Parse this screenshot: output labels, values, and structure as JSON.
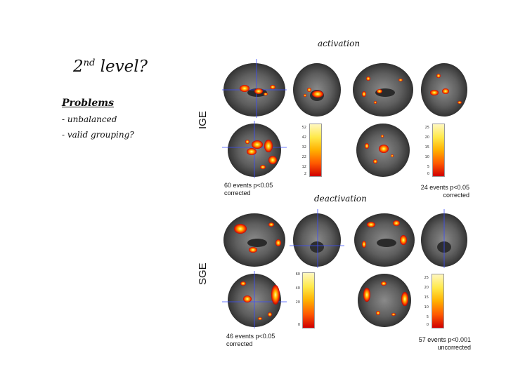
{
  "slide": {
    "title_base": "2",
    "title_sup": "nd",
    "title_rest": " level?",
    "problems_heading": "Problems",
    "bullets": [
      "- unbalanced",
      "- valid grouping?"
    ],
    "activation_label": "activation",
    "deactivation_label": "deactivation",
    "row_labels": {
      "ige": "IGE",
      "sge": "SGE"
    }
  },
  "panels": {
    "ige_activation": {
      "caption_line1": "60 events p<0.05",
      "caption_line2": "corrected",
      "colorbar_ticks": [
        "52",
        "42",
        "32",
        "22",
        "12",
        "2"
      ]
    },
    "ige_deactivation": {
      "caption_line1": "24 events p<0.05",
      "caption_line2": "corrected",
      "colorbar_ticks": [
        "25",
        "20",
        "15",
        "10",
        "5",
        "0"
      ]
    },
    "sge_activation": {
      "caption_line1": "46 events p<0.05",
      "caption_line2": "corrected",
      "colorbar_ticks": [
        "60",
        "40",
        "20",
        "0"
      ]
    },
    "sge_deactivation": {
      "caption_line1": "57 events p<0.001",
      "caption_line2": "uncorrected",
      "colorbar_ticks": [
        "25",
        "20",
        "15",
        "10",
        "5",
        "0"
      ]
    }
  }
}
